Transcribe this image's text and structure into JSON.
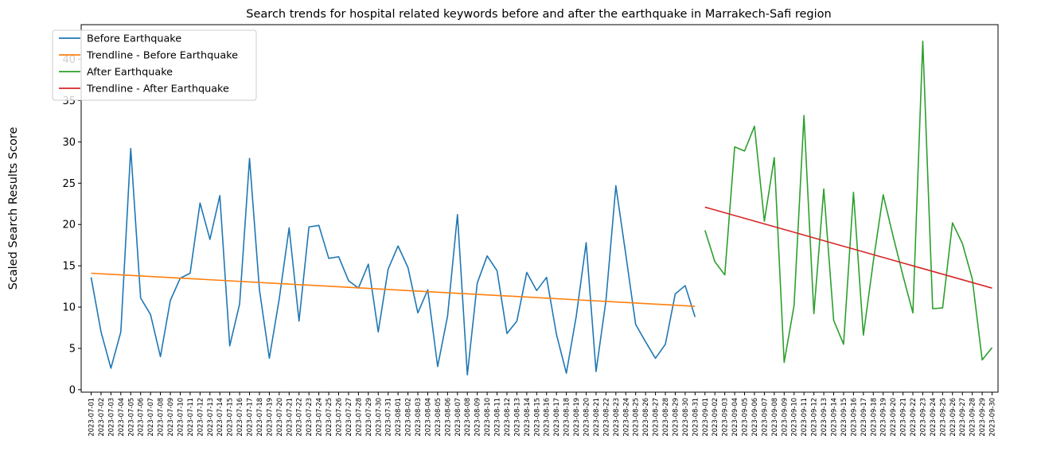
{
  "chart_data": {
    "type": "line",
    "title": "Search trends for hospital related keywords before and after the earthquake in Marrakech-Safi region",
    "xlabel": "",
    "ylabel": "Scaled Search Results Score",
    "ylim": [
      -0.3,
      44.2
    ],
    "yticks": [
      0,
      5,
      10,
      15,
      20,
      25,
      30,
      35,
      40
    ],
    "legend_position": "top-left",
    "grid": false,
    "x": [
      "2023-07-01",
      "2023-07-02",
      "2023-07-03",
      "2023-07-04",
      "2023-07-05",
      "2023-07-06",
      "2023-07-07",
      "2023-07-08",
      "2023-07-09",
      "2023-07-10",
      "2023-07-11",
      "2023-07-12",
      "2023-07-13",
      "2023-07-14",
      "2023-07-15",
      "2023-07-16",
      "2023-07-17",
      "2023-07-18",
      "2023-07-19",
      "2023-07-20",
      "2023-07-21",
      "2023-07-22",
      "2023-07-23",
      "2023-07-24",
      "2023-07-25",
      "2023-07-26",
      "2023-07-27",
      "2023-07-28",
      "2023-07-29",
      "2023-07-30",
      "2023-07-31",
      "2023-08-01",
      "2023-08-02",
      "2023-08-03",
      "2023-08-04",
      "2023-08-05",
      "2023-08-06",
      "2023-08-07",
      "2023-08-08",
      "2023-08-09",
      "2023-08-10",
      "2023-08-11",
      "2023-08-12",
      "2023-08-13",
      "2023-08-14",
      "2023-08-15",
      "2023-08-16",
      "2023-08-17",
      "2023-08-18",
      "2023-08-19",
      "2023-08-20",
      "2023-08-21",
      "2023-08-22",
      "2023-08-23",
      "2023-08-24",
      "2023-08-25",
      "2023-08-26",
      "2023-08-27",
      "2023-08-28",
      "2023-08-29",
      "2023-08-30",
      "2023-08-31",
      "2023-09-01",
      "2023-09-02",
      "2023-09-03",
      "2023-09-04",
      "2023-09-05",
      "2023-09-06",
      "2023-09-07",
      "2023-09-08",
      "2023-09-09",
      "2023-09-10",
      "2023-09-11",
      "2023-09-12",
      "2023-09-13",
      "2023-09-14",
      "2023-09-15",
      "2023-09-16",
      "2023-09-17",
      "2023-09-18",
      "2023-09-19",
      "2023-09-20",
      "2023-09-21",
      "2023-09-22",
      "2023-09-23",
      "2023-09-24",
      "2023-09-25",
      "2023-09-26",
      "2023-09-27",
      "2023-09-28",
      "2023-09-29",
      "2023-09-30"
    ],
    "series": [
      {
        "name": "Before Earthquake",
        "color": "#1f77b4",
        "x": [
          "2023-07-01",
          "2023-07-02",
          "2023-07-03",
          "2023-07-04",
          "2023-07-05",
          "2023-07-06",
          "2023-07-07",
          "2023-07-08",
          "2023-07-09",
          "2023-07-10",
          "2023-07-11",
          "2023-07-12",
          "2023-07-13",
          "2023-07-14",
          "2023-07-15",
          "2023-07-16",
          "2023-07-17",
          "2023-07-18",
          "2023-07-19",
          "2023-07-20",
          "2023-07-21",
          "2023-07-22",
          "2023-07-23",
          "2023-07-24",
          "2023-07-25",
          "2023-07-26",
          "2023-07-27",
          "2023-07-28",
          "2023-07-29",
          "2023-07-30",
          "2023-07-31",
          "2023-08-01",
          "2023-08-02",
          "2023-08-03",
          "2023-08-04",
          "2023-08-05",
          "2023-08-06",
          "2023-08-07",
          "2023-08-08",
          "2023-08-09",
          "2023-08-10",
          "2023-08-11",
          "2023-08-12",
          "2023-08-13",
          "2023-08-14",
          "2023-08-15",
          "2023-08-16",
          "2023-08-17",
          "2023-08-18",
          "2023-08-19",
          "2023-08-20",
          "2023-08-21",
          "2023-08-22",
          "2023-08-23",
          "2023-08-24",
          "2023-08-25",
          "2023-08-26",
          "2023-08-27",
          "2023-08-28",
          "2023-08-29",
          "2023-08-30",
          "2023-08-31"
        ],
        "values": [
          13.6,
          7.0,
          2.6,
          7.0,
          29.2,
          11.1,
          9.1,
          4.0,
          10.8,
          13.5,
          14.1,
          22.6,
          18.2,
          23.5,
          5.3,
          10.4,
          28.0,
          12.1,
          3.8,
          11.0,
          19.6,
          8.3,
          19.7,
          19.9,
          15.9,
          16.1,
          13.2,
          12.3,
          15.2,
          7.0,
          14.6,
          17.4,
          14.8,
          9.3,
          12.1,
          2.8,
          8.9,
          21.2,
          1.8,
          12.9,
          16.2,
          14.4,
          6.8,
          8.3,
          14.2,
          12.0,
          13.6,
          6.7,
          2.0,
          8.9,
          17.8,
          2.2,
          10.8,
          24.7,
          16.4,
          7.9,
          5.8,
          3.8,
          5.5,
          11.6,
          12.6,
          8.8
        ]
      },
      {
        "name": "Trendline - Before Earthquake",
        "color": "#ff7f0e",
        "x": [
          "2023-07-01",
          "2023-08-31"
        ],
        "values": [
          14.1,
          10.1
        ]
      },
      {
        "name": "After Earthquake",
        "color": "#2ca02c",
        "x": [
          "2023-09-01",
          "2023-09-02",
          "2023-09-03",
          "2023-09-04",
          "2023-09-05",
          "2023-09-06",
          "2023-09-07",
          "2023-09-08",
          "2023-09-09",
          "2023-09-10",
          "2023-09-11",
          "2023-09-12",
          "2023-09-13",
          "2023-09-14",
          "2023-09-15",
          "2023-09-16",
          "2023-09-17",
          "2023-09-18",
          "2023-09-19",
          "2023-09-20",
          "2023-09-21",
          "2023-09-22",
          "2023-09-23",
          "2023-09-24",
          "2023-09-25",
          "2023-09-26",
          "2023-09-27",
          "2023-09-28",
          "2023-09-29",
          "2023-09-30"
        ],
        "values": [
          19.3,
          15.5,
          13.9,
          29.4,
          28.9,
          31.9,
          20.4,
          28.1,
          3.3,
          10.2,
          33.2,
          9.2,
          24.3,
          8.4,
          5.5,
          23.9,
          6.6,
          15.5,
          23.6,
          18.6,
          13.8,
          9.3,
          42.2,
          9.8,
          9.9,
          20.2,
          17.7,
          13.4,
          3.6,
          5.1
        ]
      },
      {
        "name": "Trendline - After Earthquake",
        "color": "#d62728",
        "x": [
          "2023-09-01",
          "2023-09-30"
        ],
        "values": [
          22.1,
          12.3
        ]
      }
    ]
  }
}
